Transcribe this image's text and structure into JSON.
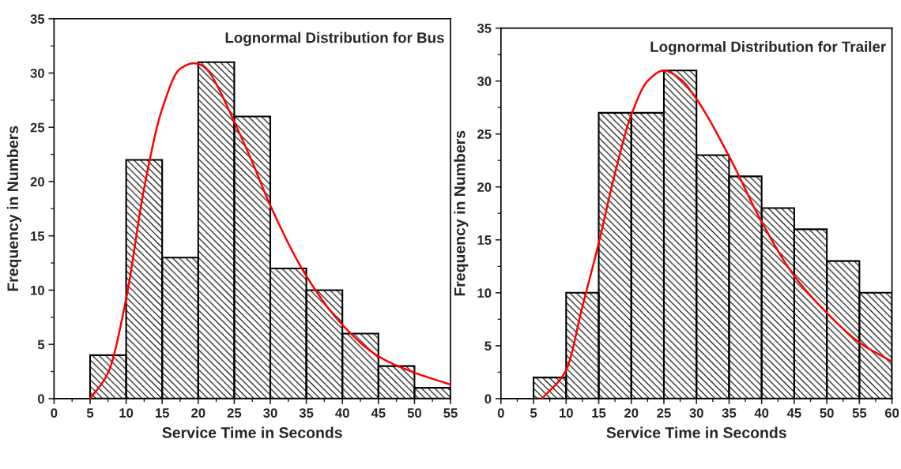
{
  "chart_data": [
    {
      "type": "histogram",
      "title": "Lognormal Distribution for Bus",
      "xlabel": "Service Time in Seconds",
      "ylabel": "Frequency in Numbers",
      "bins": [
        5,
        10,
        15,
        20,
        25,
        30,
        35,
        40,
        45,
        50,
        55
      ],
      "values": [
        4,
        22,
        13,
        31,
        26,
        12,
        10,
        6,
        3,
        1
      ],
      "color": "#000000",
      "series": [
        {
          "type": "line",
          "color": "#ff0000",
          "x": [
            5,
            7.5,
            10,
            12.5,
            15,
            17.5,
            19.4,
            20.5,
            21.5,
            22.5,
            25,
            27.5,
            30,
            35,
            40,
            45,
            50,
            55
          ],
          "values": [
            0,
            2.4,
            9.2,
            19.4,
            26.7,
            30.4,
            30.9,
            30.7,
            30.1,
            29,
            25.5,
            21.8,
            17.8,
            11.3,
            6.8,
            3.9,
            2.4,
            1.3
          ]
        }
      ],
      "xlim": [
        0,
        55
      ],
      "ylim": [
        0,
        35
      ],
      "xticks": [
        0,
        5,
        10,
        15,
        20,
        25,
        30,
        35,
        40,
        45,
        50,
        55
      ],
      "yticks": [
        0,
        5,
        10,
        15,
        20,
        25,
        30,
        35
      ],
      "grid": false,
      "legend": false
    },
    {
      "type": "histogram",
      "title": "Lognormal Distribution for Trailer",
      "xlabel": "Service Time in Seconds",
      "ylabel": "Frequency in Numbers",
      "bins": [
        5,
        10,
        15,
        20,
        25,
        30,
        35,
        40,
        45,
        50,
        55,
        60
      ],
      "values": [
        2,
        10,
        27,
        27,
        31,
        23,
        21,
        18,
        16,
        13,
        10
      ],
      "color": "#000000",
      "series": [
        {
          "type": "line",
          "color": "#ff0000",
          "x": [
            6.3,
            10,
            12.5,
            15,
            17.5,
            20,
            22.5,
            25,
            27.5,
            30,
            35,
            40,
            45,
            50,
            55,
            60
          ],
          "values": [
            0,
            2.7,
            8.7,
            14.7,
            21.3,
            26.8,
            30,
            31,
            30.2,
            28.3,
            22.9,
            16.7,
            11.6,
            8.1,
            5.3,
            3.5
          ]
        }
      ],
      "xlim": [
        0,
        60
      ],
      "ylim": [
        0,
        35
      ],
      "xticks": [
        0,
        5,
        10,
        15,
        20,
        25,
        30,
        35,
        40,
        45,
        50,
        55,
        60
      ],
      "yticks": [
        0,
        5,
        10,
        15,
        20,
        25,
        30,
        35
      ],
      "grid": false,
      "legend": false
    }
  ]
}
